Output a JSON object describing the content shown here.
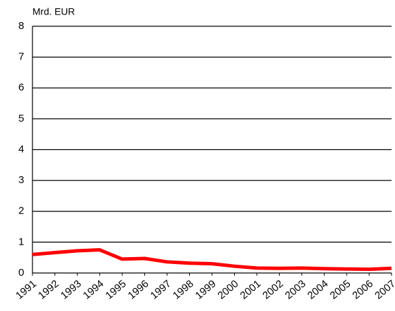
{
  "chart_data": {
    "type": "line",
    "y_unit_label": "Mrd. EUR",
    "categories": [
      "1991",
      "1992",
      "1993",
      "1994",
      "1995",
      "1996",
      "1997",
      "1998",
      "1999",
      "2000",
      "2001",
      "2002",
      "2003",
      "2004",
      "2005",
      "2006",
      "2007"
    ],
    "series": [
      {
        "color": "#ff0000",
        "values": [
          0.6,
          0.66,
          0.72,
          0.75,
          0.45,
          0.47,
          0.36,
          0.32,
          0.3,
          0.22,
          0.16,
          0.15,
          0.16,
          0.14,
          0.13,
          0.12,
          0.15
        ]
      }
    ],
    "ylim": [
      0,
      8
    ],
    "yticks": [
      0,
      1,
      2,
      3,
      4,
      5,
      6,
      7,
      8
    ],
    "grid": true
  }
}
